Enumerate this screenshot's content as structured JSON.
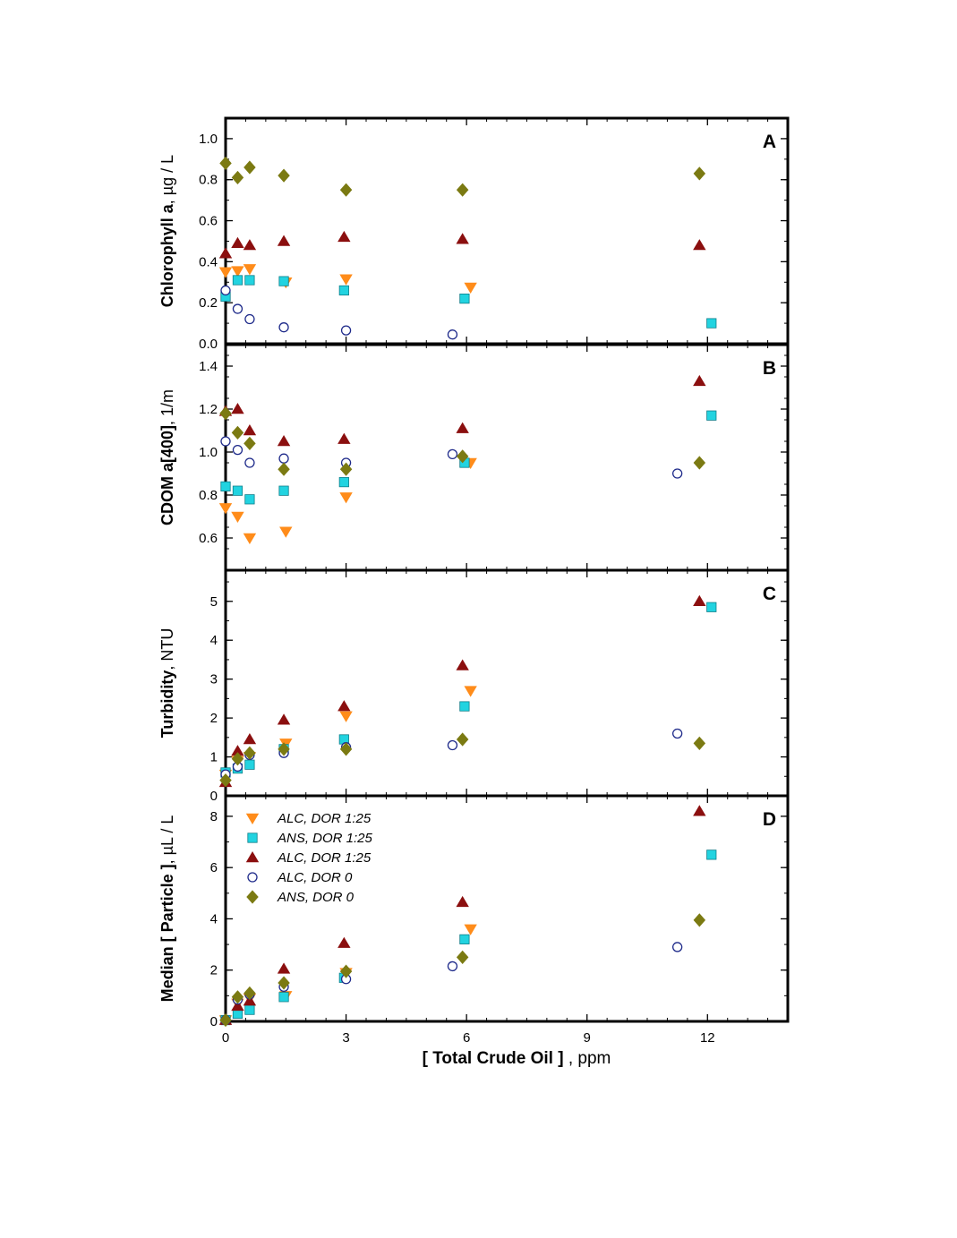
{
  "chart_data": {
    "type": "scatter",
    "xlabel": {
      "bold": "[ Total Crude Oil ]",
      "rest": " , ppm"
    },
    "xlim": [
      0,
      14
    ],
    "xticks": [
      0,
      3,
      6,
      9,
      12
    ],
    "xtick_labels": [
      "0",
      "3",
      "6",
      "9",
      "12"
    ],
    "series_styles": [
      {
        "name": "ALC, DOR 1:25",
        "marker": "triangle-down",
        "color": "#ff8c1a",
        "stroke": "#ff8c1a"
      },
      {
        "name": "ANS, DOR 1:25",
        "marker": "square",
        "color": "#22d3e0",
        "stroke": "#0e7f8a"
      },
      {
        "name": "ALC, DOR 1:25",
        "marker": "triangle-up",
        "color": "#8b0f0f",
        "stroke": "#8b0f0f"
      },
      {
        "name": "ALC, DOR 0",
        "marker": "circle-open",
        "color": "#ffffff",
        "stroke": "#1e2a8a"
      },
      {
        "name": "ANS, DOR 0",
        "marker": "diamond",
        "color": "#7b7a12",
        "stroke": "#7b7a12"
      }
    ],
    "panels": [
      {
        "letter": "A",
        "ylabel": {
          "bold": "Chlorophyll a",
          "rest": ", µg / L"
        },
        "ylim": [
          0,
          1.1
        ],
        "yticks": [
          0,
          0.2,
          0.4,
          0.6,
          0.8,
          1.0
        ],
        "ytick_labels": [
          "0.0",
          "0.2",
          "0.4",
          "0.6",
          "0.8",
          "1.0"
        ],
        "series": [
          {
            "x": [
              0,
              0.3,
              0.6,
              1.5,
              3.0,
              6.1
            ],
            "y": [
              0.35,
              0.355,
              0.365,
              0.3,
              0.315,
              0.275
            ]
          },
          {
            "x": [
              0,
              0.3,
              0.6,
              1.45,
              2.95,
              5.95,
              12.1
            ],
            "y": [
              0.23,
              0.31,
              0.31,
              0.305,
              0.26,
              0.22,
              0.1
            ]
          },
          {
            "x": [
              0,
              0.3,
              0.6,
              1.45,
              2.95,
              5.9,
              11.8
            ],
            "y": [
              0.44,
              0.49,
              0.48,
              0.5,
              0.52,
              0.51,
              0.48
            ]
          },
          {
            "x": [
              0,
              0.3,
              0.6,
              1.45,
              3.0,
              5.65
            ],
            "y": [
              0.26,
              0.17,
              0.12,
              0.08,
              0.065,
              0.045
            ]
          },
          {
            "x": [
              0,
              0.3,
              0.6,
              1.45,
              3.0,
              5.9,
              11.8
            ],
            "y": [
              0.88,
              0.81,
              0.86,
              0.82,
              0.75,
              0.75,
              0.83
            ]
          }
        ]
      },
      {
        "letter": "B",
        "ylabel": {
          "bold": "CDOM a[400]",
          "rest": ", 1/m"
        },
        "ylim": [
          0.45,
          1.5
        ],
        "yticks": [
          0.6,
          0.8,
          1.0,
          1.2,
          1.4
        ],
        "ytick_labels": [
          "0.6",
          "0.8",
          "1.0",
          "1.2",
          "1.4"
        ],
        "series": [
          {
            "x": [
              0,
              0.3,
              0.6,
              1.5,
              3.0,
              6.1
            ],
            "y": [
              0.74,
              0.7,
              0.6,
              0.63,
              0.79,
              0.95
            ]
          },
          {
            "x": [
              0,
              0.3,
              0.6,
              1.45,
              2.95,
              5.95,
              12.1
            ],
            "y": [
              0.84,
              0.82,
              0.78,
              0.82,
              0.86,
              0.95,
              1.17
            ]
          },
          {
            "x": [
              0,
              0.3,
              0.6,
              1.45,
              2.95,
              5.9,
              11.8
            ],
            "y": [
              1.19,
              1.2,
              1.1,
              1.05,
              1.06,
              1.11,
              1.33
            ]
          },
          {
            "x": [
              0,
              0.3,
              0.6,
              1.45,
              3.0,
              5.65,
              11.25
            ],
            "y": [
              1.05,
              1.01,
              0.95,
              0.97,
              0.95,
              0.99,
              0.9
            ]
          },
          {
            "x": [
              0,
              0.3,
              0.6,
              1.45,
              3.0,
              5.9,
              11.8
            ],
            "y": [
              1.18,
              1.09,
              1.04,
              0.92,
              0.92,
              0.98,
              0.95
            ]
          }
        ]
      },
      {
        "letter": "C",
        "ylabel": {
          "bold": "Turbidity",
          "rest": ", NTU"
        },
        "ylim": [
          0,
          5.8
        ],
        "yticks": [
          0,
          1,
          2,
          3,
          4,
          5
        ],
        "ytick_labels": [
          "0",
          "1",
          "2",
          "3",
          "4",
          "5"
        ],
        "series": [
          {
            "x": [
              0,
              0.3,
              0.6,
              1.5,
              3.0,
              6.1
            ],
            "y": [
              0.55,
              0.9,
              1.0,
              1.35,
              2.05,
              2.7
            ]
          },
          {
            "x": [
              0,
              0.3,
              0.6,
              1.45,
              2.95,
              5.95,
              12.1
            ],
            "y": [
              0.6,
              0.7,
              0.8,
              1.2,
              1.45,
              2.3,
              4.85
            ]
          },
          {
            "x": [
              0,
              0.3,
              0.6,
              1.45,
              2.95,
              5.9,
              11.8
            ],
            "y": [
              0.35,
              1.15,
              1.45,
              1.95,
              2.3,
              3.35,
              5.0
            ]
          },
          {
            "x": [
              0,
              0.3,
              0.6,
              1.45,
              3.0,
              5.65,
              11.25
            ],
            "y": [
              0.55,
              0.75,
              1.05,
              1.1,
              1.25,
              1.3,
              1.6
            ]
          },
          {
            "x": [
              0,
              0.3,
              0.6,
              1.45,
              3.0,
              5.9,
              11.8
            ],
            "y": [
              0.4,
              0.95,
              1.1,
              1.2,
              1.2,
              1.45,
              1.35
            ]
          }
        ]
      },
      {
        "letter": "D",
        "ylabel": {
          "bold": "Median [ Particle ]",
          "rest": ", µL / L"
        },
        "ylim": [
          0,
          8.8
        ],
        "yticks": [
          0,
          2,
          4,
          6,
          8
        ],
        "ytick_labels": [
          "0",
          "2",
          "4",
          "6",
          "8"
        ],
        "series": [
          {
            "x": [
              0,
              0.3,
              0.6,
              1.5,
              3.0,
              6.1
            ],
            "y": [
              0.05,
              0.7,
              0.9,
              1.0,
              1.9,
              3.6
            ]
          },
          {
            "x": [
              0,
              0.3,
              0.6,
              1.45,
              2.95,
              5.95,
              12.1
            ],
            "y": [
              0.05,
              0.3,
              0.45,
              0.95,
              1.7,
              3.2,
              6.5
            ]
          },
          {
            "x": [
              0,
              0.3,
              0.6,
              1.45,
              2.95,
              5.9,
              11.8
            ],
            "y": [
              0.05,
              0.6,
              0.8,
              2.05,
              3.05,
              4.65,
              8.2
            ]
          },
          {
            "x": [
              0,
              0.3,
              0.6,
              1.45,
              3.0,
              5.65,
              11.25
            ],
            "y": [
              0.05,
              0.85,
              1.05,
              1.35,
              1.65,
              2.15,
              2.9
            ]
          },
          {
            "x": [
              0,
              0.3,
              0.6,
              1.45,
              3.0,
              5.9,
              11.8
            ],
            "y": [
              0.05,
              0.95,
              1.1,
              1.5,
              1.95,
              2.5,
              3.95
            ]
          }
        ]
      }
    ],
    "legend": {
      "placement": "top-left of panel D",
      "entries": [
        "ALC, DOR 1:25",
        "ANS, DOR 1:25",
        "ALC, DOR 1:25",
        "ALC, DOR 0",
        "ANS, DOR 0"
      ]
    }
  }
}
